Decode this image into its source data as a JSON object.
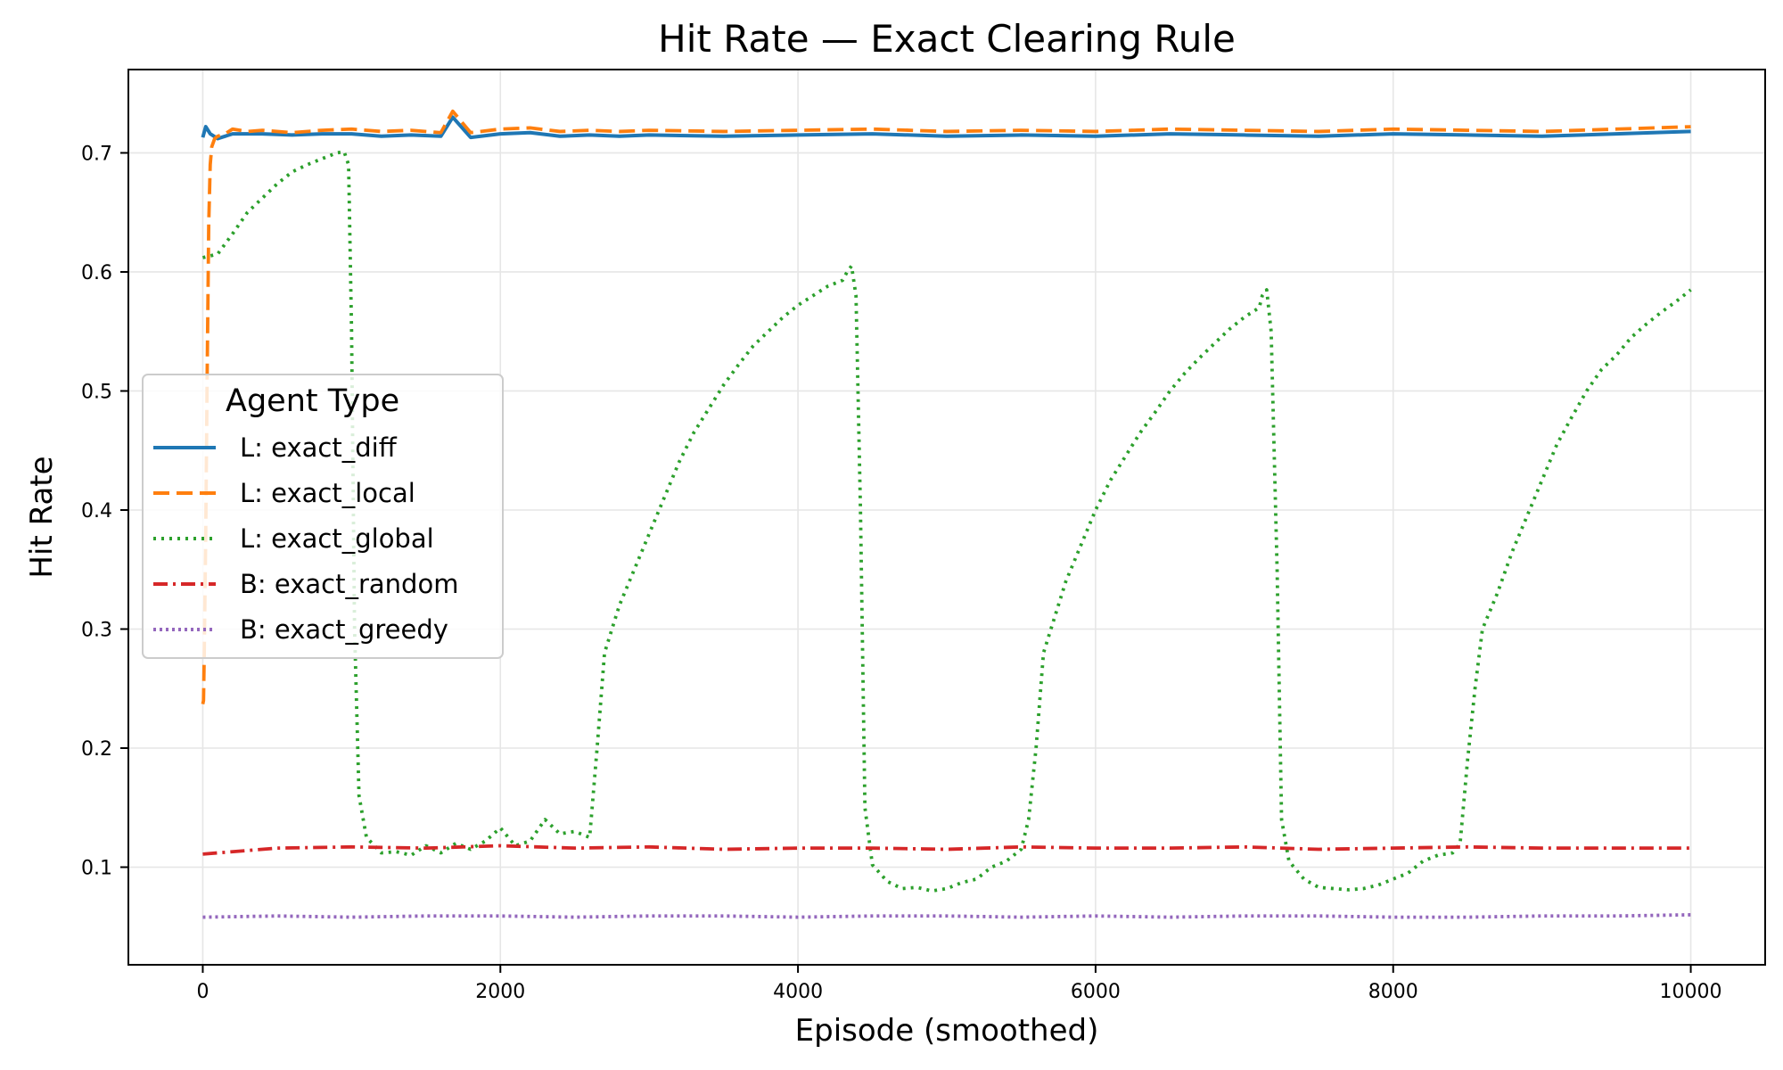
{
  "chart_data": {
    "type": "line",
    "title": "Hit Rate — Exact Clearing Rule",
    "xlabel": "Episode (smoothed)",
    "ylabel": "Hit Rate",
    "xlim": [
      -500,
      10500
    ],
    "ylim": [
      0.018,
      0.77
    ],
    "xticks": [
      0,
      2000,
      4000,
      6000,
      8000,
      10000
    ],
    "yticks": [
      0.1,
      0.2,
      0.3,
      0.4,
      0.5,
      0.6,
      0.7
    ],
    "xtick_labels": [
      "0",
      "2000",
      "4000",
      "6000",
      "8000",
      "10000"
    ],
    "ytick_labels": [
      "0.1",
      "0.2",
      "0.3",
      "0.4",
      "0.5",
      "0.6",
      "0.7"
    ],
    "grid": true,
    "legend": {
      "title": "Agent Type",
      "placement": "center-left"
    },
    "series": [
      {
        "name": "L: exact_diff",
        "color": "#1f77b4",
        "dash": "solid",
        "x": [
          0,
          20,
          50,
          100,
          200,
          400,
          600,
          800,
          1000,
          1200,
          1400,
          1600,
          1680,
          1800,
          2000,
          2200,
          2400,
          2600,
          2800,
          3000,
          3500,
          4000,
          4500,
          5000,
          5500,
          6000,
          6500,
          7000,
          7500,
          8000,
          8500,
          9000,
          9500,
          10000
        ],
        "values": [
          0.713,
          0.722,
          0.716,
          0.712,
          0.716,
          0.716,
          0.715,
          0.716,
          0.716,
          0.714,
          0.715,
          0.714,
          0.73,
          0.713,
          0.716,
          0.717,
          0.714,
          0.715,
          0.714,
          0.715,
          0.714,
          0.715,
          0.716,
          0.714,
          0.715,
          0.714,
          0.716,
          0.715,
          0.714,
          0.716,
          0.715,
          0.714,
          0.716,
          0.718
        ]
      },
      {
        "name": "L: exact_local",
        "color": "#ff7f0e",
        "dash": "dashed",
        "x": [
          0,
          5,
          10,
          20,
          30,
          40,
          50,
          60,
          80,
          100,
          150,
          200,
          300,
          400,
          600,
          800,
          1000,
          1200,
          1400,
          1600,
          1680,
          1800,
          2000,
          2200,
          2400,
          2600,
          2800,
          3000,
          3500,
          4000,
          4500,
          5000,
          5500,
          6000,
          6500,
          7000,
          7500,
          8000,
          8500,
          9000,
          9500,
          10000
        ],
        "values": [
          0.237,
          0.24,
          0.28,
          0.38,
          0.52,
          0.64,
          0.69,
          0.705,
          0.712,
          0.714,
          0.716,
          0.72,
          0.718,
          0.719,
          0.717,
          0.719,
          0.72,
          0.718,
          0.719,
          0.717,
          0.735,
          0.717,
          0.72,
          0.721,
          0.718,
          0.719,
          0.718,
          0.719,
          0.718,
          0.719,
          0.72,
          0.718,
          0.719,
          0.718,
          0.72,
          0.719,
          0.718,
          0.72,
          0.719,
          0.718,
          0.72,
          0.722
        ]
      },
      {
        "name": "L: exact_global",
        "color": "#2ca02c",
        "dash": "dotted",
        "x": [
          0,
          100,
          200,
          300,
          400,
          500,
          600,
          700,
          800,
          900,
          950,
          980,
          1000,
          1020,
          1050,
          1100,
          1200,
          1300,
          1400,
          1500,
          1600,
          1700,
          1800,
          1900,
          2000,
          2100,
          2200,
          2300,
          2400,
          2500,
          2600,
          2650,
          2700,
          2750,
          2800,
          2900,
          3000,
          3100,
          3200,
          3300,
          3400,
          3500,
          3600,
          3700,
          3800,
          3900,
          4000,
          4100,
          4200,
          4300,
          4330,
          4360,
          4390,
          4420,
          4450,
          4500,
          4600,
          4700,
          4800,
          4900,
          5000,
          5100,
          5200,
          5300,
          5400,
          5500,
          5550,
          5600,
          5650,
          5700,
          5800,
          5900,
          6000,
          6100,
          6200,
          6300,
          6400,
          6500,
          6600,
          6700,
          6800,
          6900,
          7000,
          7100,
          7120,
          7150,
          7180,
          7220,
          7250,
          7300,
          7400,
          7500,
          7600,
          7700,
          7800,
          7900,
          8000,
          8100,
          8200,
          8300,
          8400,
          8450,
          8500,
          8550,
          8600,
          8700,
          8800,
          8900,
          9000,
          9100,
          9200,
          9300,
          9400,
          9500,
          9600,
          9700,
          9800,
          9900,
          10000
        ],
        "values": [
          0.612,
          0.615,
          0.632,
          0.65,
          0.662,
          0.674,
          0.684,
          0.69,
          0.695,
          0.7,
          0.701,
          0.69,
          0.55,
          0.3,
          0.16,
          0.125,
          0.112,
          0.113,
          0.11,
          0.118,
          0.112,
          0.12,
          0.115,
          0.122,
          0.133,
          0.118,
          0.122,
          0.14,
          0.128,
          0.13,
          0.125,
          0.2,
          0.28,
          0.3,
          0.32,
          0.35,
          0.38,
          0.41,
          0.44,
          0.465,
          0.485,
          0.505,
          0.522,
          0.538,
          0.55,
          0.562,
          0.572,
          0.58,
          0.588,
          0.593,
          0.6,
          0.605,
          0.58,
          0.4,
          0.15,
          0.102,
          0.088,
          0.082,
          0.083,
          0.08,
          0.082,
          0.087,
          0.09,
          0.1,
          0.105,
          0.115,
          0.14,
          0.2,
          0.28,
          0.3,
          0.34,
          0.37,
          0.4,
          0.425,
          0.445,
          0.465,
          0.482,
          0.5,
          0.515,
          0.528,
          0.54,
          0.552,
          0.562,
          0.57,
          0.58,
          0.585,
          0.55,
          0.35,
          0.14,
          0.105,
          0.09,
          0.083,
          0.082,
          0.081,
          0.082,
          0.085,
          0.09,
          0.095,
          0.105,
          0.11,
          0.112,
          0.12,
          0.19,
          0.25,
          0.3,
          0.33,
          0.365,
          0.395,
          0.425,
          0.455,
          0.478,
          0.5,
          0.518,
          0.53,
          0.545,
          0.556,
          0.566,
          0.575,
          0.585
        ]
      },
      {
        "name": "B: exact_random",
        "color": "#d62728",
        "dash": "dashdot",
        "x": [
          0,
          500,
          1000,
          1500,
          2000,
          2500,
          3000,
          3500,
          4000,
          4500,
          5000,
          5500,
          6000,
          6500,
          7000,
          7500,
          8000,
          8500,
          9000,
          9500,
          10000
        ],
        "values": [
          0.111,
          0.116,
          0.117,
          0.116,
          0.118,
          0.116,
          0.117,
          0.115,
          0.116,
          0.116,
          0.115,
          0.117,
          0.116,
          0.116,
          0.117,
          0.115,
          0.116,
          0.117,
          0.116,
          0.116,
          0.116
        ]
      },
      {
        "name": "B: exact_greedy",
        "color": "#9467bd",
        "dash": "densedotted",
        "x": [
          0,
          500,
          1000,
          1500,
          2000,
          2500,
          3000,
          3500,
          4000,
          4500,
          5000,
          5500,
          6000,
          6500,
          7000,
          7500,
          8000,
          8500,
          9000,
          9500,
          10000
        ],
        "values": [
          0.058,
          0.059,
          0.058,
          0.059,
          0.059,
          0.058,
          0.059,
          0.059,
          0.058,
          0.059,
          0.059,
          0.058,
          0.059,
          0.058,
          0.059,
          0.059,
          0.058,
          0.058,
          0.059,
          0.059,
          0.06
        ]
      }
    ]
  }
}
